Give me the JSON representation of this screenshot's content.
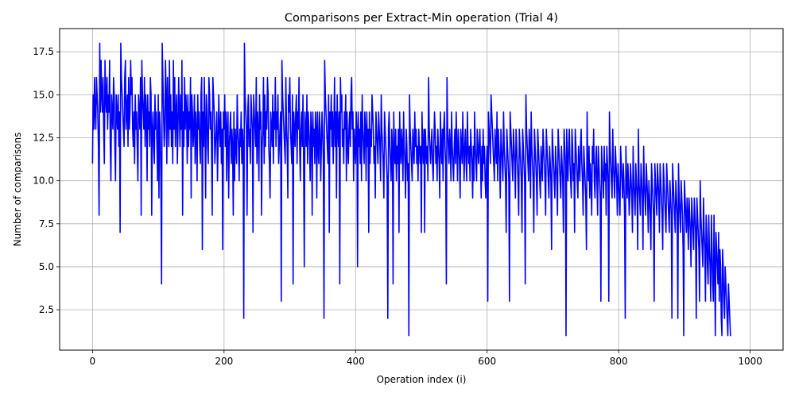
{
  "chart_data": {
    "type": "line",
    "title": "Comparisons per Extract-Min operation (Trial 4)",
    "xlabel": "Operation index (i)",
    "ylabel": "Number of comparisons",
    "xlim": [
      -50,
      1050
    ],
    "ylim": [
      0.15,
      18.85
    ],
    "xticks": [
      0,
      200,
      400,
      600,
      800,
      1000
    ],
    "xtick_labels": [
      "0",
      "200",
      "400",
      "600",
      "800",
      "1000"
    ],
    "yticks": [
      2.5,
      5.0,
      7.5,
      10.0,
      12.5,
      15.0,
      17.5
    ],
    "ytick_labels": [
      "2.5",
      "5.0",
      "7.5",
      "10.0",
      "12.5",
      "15.0",
      "17.5"
    ],
    "grid": true,
    "line_color": "#0000ff",
    "series": [
      {
        "x_start": 0,
        "x_step": 1,
        "values": [
          11,
          15,
          13,
          16,
          14,
          13,
          16,
          15,
          14,
          12,
          8,
          18,
          14,
          17,
          15,
          14,
          16,
          13,
          11,
          17,
          15,
          14,
          16,
          13,
          15,
          14,
          17,
          12,
          10,
          15,
          14,
          13,
          16,
          15,
          12,
          10,
          15,
          14,
          13,
          15,
          12,
          14,
          7,
          18,
          16,
          15,
          14,
          13,
          12,
          16,
          17,
          13,
          14,
          15,
          12,
          16,
          13,
          14,
          17,
          15,
          16,
          13,
          12,
          14,
          11,
          15,
          13,
          14,
          12,
          10,
          15,
          14,
          13,
          16,
          8,
          17,
          15,
          14,
          13,
          16,
          12,
          15,
          14,
          10,
          15,
          13,
          14,
          12,
          16,
          15,
          8,
          13,
          14,
          12,
          11,
          15,
          13,
          14,
          12,
          10,
          15,
          9,
          14,
          13,
          10,
          4,
          18,
          16,
          14,
          12,
          13,
          17,
          15,
          11,
          16,
          14,
          12,
          17,
          13,
          15,
          12,
          14,
          11,
          17,
          13,
          16,
          12,
          14,
          15,
          11,
          13,
          16,
          14,
          12,
          15,
          13,
          17,
          8,
          14,
          12,
          16,
          13,
          15,
          14,
          11,
          15,
          12,
          14,
          13,
          16,
          9,
          15,
          14,
          12,
          13,
          15,
          11,
          14,
          13,
          10,
          15,
          13,
          14,
          12,
          11,
          15,
          16,
          6,
          14,
          12,
          16,
          13,
          9,
          15,
          14,
          12,
          11,
          16,
          15,
          13,
          14,
          12,
          8,
          16,
          15,
          14,
          11,
          12,
          13,
          14,
          10,
          12,
          15,
          13,
          12,
          14,
          11,
          13,
          6,
          14,
          13,
          15,
          12,
          14,
          10,
          13,
          14,
          9,
          12,
          13,
          14,
          11,
          13,
          12,
          8,
          14,
          10,
          13,
          12,
          11,
          15,
          13,
          12,
          10,
          13,
          12,
          14,
          11,
          13,
          12,
          2,
          18,
          15,
          14,
          13,
          8,
          14,
          15,
          12,
          13,
          11,
          15,
          14,
          13,
          7,
          15,
          14,
          13,
          12,
          16,
          11,
          14,
          13,
          10,
          15,
          13,
          14,
          8,
          12,
          13,
          16,
          11,
          15,
          12,
          14,
          13,
          16,
          15,
          12,
          11,
          9,
          14,
          13,
          12,
          15,
          11,
          14,
          13,
          16,
          12,
          14,
          13,
          15,
          11,
          12,
          13,
          14,
          3,
          17,
          15,
          14,
          13,
          12,
          11,
          16,
          13,
          12,
          9,
          15,
          14,
          16,
          13,
          12,
          11,
          15,
          4,
          14,
          13,
          12,
          14,
          15,
          11,
          14,
          13,
          16,
          12,
          10,
          13,
          14,
          12,
          15,
          11,
          5,
          14,
          13,
          12,
          15,
          11,
          14,
          13,
          12,
          10,
          14,
          13,
          8,
          14,
          12,
          13,
          11,
          14,
          13,
          9,
          14,
          12,
          11,
          14,
          13,
          10,
          12,
          14,
          13,
          11,
          2,
          17,
          15,
          14,
          13,
          12,
          11,
          15,
          7,
          14,
          13,
          15,
          12,
          14,
          11,
          13,
          16,
          12,
          14,
          9,
          15,
          13,
          12,
          14,
          4,
          16,
          14,
          15,
          12,
          13,
          11,
          14,
          13,
          15,
          10,
          14,
          12,
          11,
          13,
          14,
          12,
          15,
          16,
          13,
          14,
          10,
          13,
          12,
          11,
          14,
          13,
          5,
          14,
          12,
          13,
          11,
          14,
          10,
          15,
          13,
          12,
          11,
          14,
          13,
          10,
          14,
          12,
          13,
          7,
          14,
          11,
          13,
          12,
          15,
          14,
          13,
          11,
          12,
          9,
          14,
          13,
          12,
          11,
          14,
          13,
          12,
          10,
          15,
          13,
          12,
          11,
          9,
          14,
          13,
          12,
          11,
          10,
          2,
          13,
          14,
          12,
          11,
          10,
          13,
          12,
          4,
          14,
          12,
          11,
          13,
          10,
          12,
          11,
          13,
          7,
          14,
          12,
          11,
          13,
          12,
          10,
          14,
          12,
          11,
          9,
          13,
          12,
          10,
          11,
          1,
          15,
          13,
          12,
          11,
          10,
          13,
          12,
          11,
          14,
          12,
          13,
          11,
          12,
          10,
          13,
          12,
          11,
          12,
          7,
          14,
          12,
          11,
          13,
          7,
          13,
          12,
          11,
          12,
          10,
          16,
          13,
          12,
          11,
          12,
          13,
          11,
          10,
          12,
          14,
          13,
          11,
          12,
          10,
          13,
          12,
          11,
          9,
          14,
          12,
          11,
          13,
          10,
          13,
          14,
          12,
          11,
          4,
          16,
          13,
          12,
          11,
          13,
          12,
          10,
          14,
          12,
          11,
          10,
          12,
          13,
          11,
          14,
          12,
          10,
          13,
          12,
          11,
          9,
          13,
          12,
          11,
          14,
          12,
          10,
          12,
          13,
          11,
          10,
          14,
          12,
          11,
          12,
          10,
          13,
          12,
          11,
          9,
          12,
          10,
          14,
          12,
          11,
          10,
          13,
          12,
          11,
          12,
          13,
          11,
          9,
          12,
          10,
          13,
          11,
          12,
          10,
          9,
          11,
          12,
          3,
          14,
          13,
          12,
          11,
          15,
          14,
          13,
          12,
          11,
          10,
          13,
          12,
          11,
          14,
          10,
          13,
          12,
          11,
          9,
          13,
          12,
          11,
          10,
          14,
          12,
          11,
          10,
          7,
          13,
          12,
          11,
          10,
          3,
          14,
          13,
          12,
          11,
          10,
          13,
          12,
          11,
          9,
          13,
          12,
          11,
          10,
          8,
          13,
          12,
          11,
          10,
          7,
          13,
          12,
          11,
          10,
          4,
          15,
          13,
          12,
          11,
          10,
          13,
          12,
          9,
          14,
          12,
          11,
          10,
          7,
          13,
          12,
          11,
          10,
          8,
          13,
          12,
          11,
          10,
          9,
          12,
          11,
          10,
          13,
          12,
          11,
          10,
          8,
          13,
          12,
          11,
          10,
          9,
          12,
          11,
          10,
          6,
          13,
          12,
          11,
          10,
          9,
          12,
          11,
          10,
          8,
          13,
          12,
          11,
          10,
          9,
          12,
          11,
          10,
          7,
          13,
          12,
          11,
          1,
          13,
          11,
          10,
          12,
          13,
          11,
          10,
          9,
          13,
          12,
          10,
          11,
          7,
          13,
          12,
          11,
          10,
          9,
          12,
          11,
          10,
          12,
          13,
          11,
          10,
          8,
          12,
          11,
          10,
          9,
          6,
          14,
          11,
          10,
          12,
          9,
          11,
          10,
          8,
          12,
          11,
          13,
          10,
          9,
          11,
          12,
          10,
          8,
          12,
          11,
          10,
          9,
          3,
          12,
          11,
          10,
          9,
          12,
          10,
          11,
          8,
          12,
          11,
          10,
          3,
          14,
          12,
          11,
          10,
          9,
          13,
          11,
          10,
          9,
          12,
          11,
          10,
          8,
          11,
          10,
          9,
          8,
          12,
          11,
          10,
          9,
          11,
          10,
          8,
          2,
          12,
          10,
          9,
          11,
          10,
          8,
          9,
          11,
          10,
          9,
          7,
          12,
          10,
          9,
          8,
          11,
          10,
          9,
          6,
          13,
          10,
          9,
          8,
          11,
          10,
          9,
          6,
          12,
          10,
          9,
          8,
          11,
          10,
          9,
          7,
          10,
          9,
          8,
          6,
          11,
          10,
          9,
          8,
          3,
          11,
          10,
          9,
          8,
          11,
          10,
          9,
          7,
          11,
          10,
          9,
          8,
          6,
          11,
          10,
          9,
          8,
          7,
          11,
          10,
          9,
          8,
          7,
          10,
          9,
          8,
          2,
          11,
          10,
          9,
          8,
          7,
          10,
          9,
          8,
          2,
          11,
          9,
          8,
          7,
          10,
          9,
          8,
          6,
          1,
          10,
          9,
          8,
          7,
          9,
          8,
          6,
          9,
          8,
          7,
          5,
          9,
          8,
          7,
          6,
          9,
          8,
          7,
          2,
          9,
          8,
          7,
          6,
          3,
          10,
          8,
          7,
          6,
          5,
          9,
          7,
          6,
          3,
          8,
          7,
          5,
          4,
          8,
          6,
          5,
          3,
          8,
          6,
          4,
          3,
          8,
          5,
          1,
          7,
          6,
          5,
          4,
          7,
          3,
          6,
          5,
          2,
          1,
          6,
          5,
          3,
          2,
          5,
          4,
          3,
          2,
          1,
          4,
          3,
          2,
          1,
          1
        ]
      }
    ]
  }
}
